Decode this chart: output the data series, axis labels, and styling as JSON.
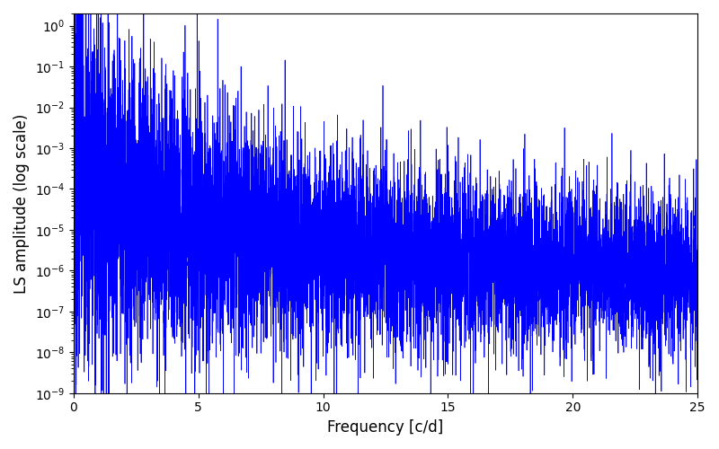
{
  "xlabel": "Frequency [c/d]",
  "ylabel": "LS amplitude (log scale)",
  "line_color": "#0000ff",
  "xlim": [
    0,
    25
  ],
  "ylim": [
    1e-09,
    2
  ],
  "background_color": "#ffffff",
  "linewidth": 0.5,
  "n_points": 8000,
  "seed": 7,
  "figsize": [
    8.0,
    5.0
  ],
  "dpi": 100,
  "xlabel_fontsize": 12,
  "ylabel_fontsize": 12
}
